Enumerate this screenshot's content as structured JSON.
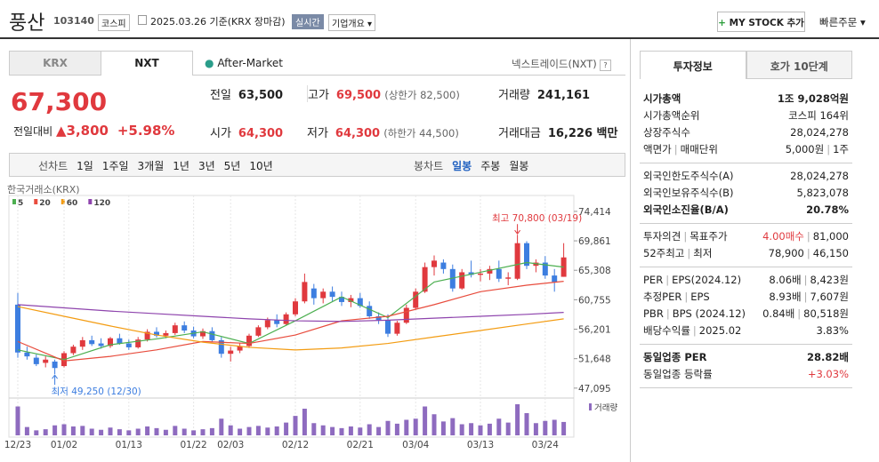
{
  "header": {
    "name": "풍산",
    "code": "103140",
    "market": "코스피",
    "date": "2025.03.26 기준(KRX 장마감)",
    "realtime": "실시간",
    "overview": "기업개요",
    "mystock": "MY STOCK 추가",
    "quick_order": "빠른주문"
  },
  "exchange_tabs": [
    "KRX",
    "NXT"
  ],
  "after_market": "After-Market",
  "nxt_link": "넥스트레이드(NXT)",
  "quote": {
    "price": "67,300",
    "change_label": "전일대비",
    "change": "3,800",
    "change_pct": "+5.98%",
    "items": [
      {
        "label": "전일",
        "value": "63,500"
      },
      {
        "label": "고가",
        "value": "69,500",
        "note": "(상한가 82,500)"
      },
      {
        "label": "거래량",
        "value": "241,161"
      },
      {
        "label": "시가",
        "value": "64,300"
      },
      {
        "label": "저가",
        "value": "64,300",
        "note": "(하한가 44,500)"
      },
      {
        "label": "거래대금",
        "value": "16,226 백만"
      }
    ]
  },
  "period_tabs": {
    "line": "선차트",
    "line_items": [
      "1일",
      "1주일",
      "3개월",
      "1년",
      "3년",
      "5년",
      "10년"
    ],
    "candle": "봉차트",
    "candle_items": [
      "일봉",
      "주봉",
      "월봉"
    ]
  },
  "chart_data": {
    "type": "candlestick",
    "source": "한국거래소(KRX)",
    "up_color": "#e0393e",
    "down_color": "#3d7ee0",
    "categories": [
      "12/23",
      null,
      null,
      null,
      null,
      "01/02",
      null,
      null,
      null,
      null,
      null,
      null,
      "01/13",
      null,
      null,
      null,
      null,
      null,
      null,
      "01/22",
      null,
      null,
      null,
      "02/03",
      null,
      null,
      null,
      null,
      null,
      null,
      "02/12",
      null,
      null,
      null,
      null,
      null,
      null,
      "02/21",
      null,
      null,
      null,
      null,
      null,
      "03/04",
      null,
      null,
      null,
      null,
      null,
      null,
      "03/13",
      null,
      null,
      null,
      null,
      null,
      null,
      "03/24",
      null,
      null
    ],
    "candles": [
      {
        "open": 60000,
        "high": 61800,
        "low": 51800,
        "close": 52600
      },
      {
        "open": 52600,
        "high": 53500,
        "low": 51500,
        "close": 52000
      },
      {
        "open": 51800,
        "high": 52300,
        "low": 50500,
        "close": 50800
      },
      {
        "open": 51000,
        "high": 52000,
        "low": 50300,
        "close": 51500
      },
      {
        "open": 51200,
        "high": 51500,
        "low": 49250,
        "close": 50200
      },
      {
        "open": 50500,
        "high": 52800,
        "low": 50300,
        "close": 52500
      },
      {
        "open": 52500,
        "high": 53800,
        "low": 52200,
        "close": 53500
      },
      {
        "open": 53500,
        "high": 55000,
        "low": 53000,
        "close": 54500
      },
      {
        "open": 54500,
        "high": 55200,
        "low": 53600,
        "close": 53900
      },
      {
        "open": 54000,
        "high": 54800,
        "low": 53200,
        "close": 53600
      },
      {
        "open": 53600,
        "high": 55000,
        "low": 53300,
        "close": 54800
      },
      {
        "open": 54800,
        "high": 55500,
        "low": 53800,
        "close": 54000
      },
      {
        "open": 54000,
        "high": 54600,
        "low": 53000,
        "close": 53400
      },
      {
        "open": 53400,
        "high": 55000,
        "low": 53200,
        "close": 54600
      },
      {
        "open": 54600,
        "high": 56200,
        "low": 54300,
        "close": 55800
      },
      {
        "open": 55800,
        "high": 56500,
        "low": 54900,
        "close": 55200
      },
      {
        "open": 55200,
        "high": 56000,
        "low": 54800,
        "close": 55600
      },
      {
        "open": 55600,
        "high": 57200,
        "low": 55300,
        "close": 56800
      },
      {
        "open": 56800,
        "high": 57400,
        "low": 55600,
        "close": 56000
      },
      {
        "open": 56000,
        "high": 56600,
        "low": 54800,
        "close": 55100
      },
      {
        "open": 55100,
        "high": 56300,
        "low": 54700,
        "close": 55900
      },
      {
        "open": 55900,
        "high": 56500,
        "low": 54200,
        "close": 54500
      },
      {
        "open": 54500,
        "high": 55000,
        "low": 51800,
        "close": 52400
      },
      {
        "open": 52400,
        "high": 53500,
        "low": 51200,
        "close": 52900
      },
      {
        "open": 52900,
        "high": 54000,
        "low": 52500,
        "close": 53600
      },
      {
        "open": 53600,
        "high": 55500,
        "low": 53300,
        "close": 55200
      },
      {
        "open": 55200,
        "high": 56800,
        "low": 55000,
        "close": 56500
      },
      {
        "open": 56500,
        "high": 58000,
        "low": 56200,
        "close": 57600
      },
      {
        "open": 57600,
        "high": 58500,
        "low": 56500,
        "close": 57000
      },
      {
        "open": 57000,
        "high": 58800,
        "low": 56800,
        "close": 58500
      },
      {
        "open": 58500,
        "high": 61000,
        "low": 58200,
        "close": 60500
      },
      {
        "open": 60500,
        "high": 64800,
        "low": 60200,
        "close": 63500
      },
      {
        "open": 62500,
        "high": 63200,
        "low": 60000,
        "close": 61000
      },
      {
        "open": 61000,
        "high": 62500,
        "low": 60200,
        "close": 62000
      },
      {
        "open": 62000,
        "high": 62800,
        "low": 60500,
        "close": 61200
      },
      {
        "open": 61200,
        "high": 62000,
        "low": 59800,
        "close": 60400
      },
      {
        "open": 60400,
        "high": 61500,
        "low": 59600,
        "close": 61000
      },
      {
        "open": 61000,
        "high": 61800,
        "low": 59500,
        "close": 59800
      },
      {
        "open": 59800,
        "high": 60500,
        "low": 57800,
        "close": 58200
      },
      {
        "open": 58200,
        "high": 58800,
        "low": 57000,
        "close": 57600
      },
      {
        "open": 57600,
        "high": 58500,
        "low": 55000,
        "close": 55500
      },
      {
        "open": 55500,
        "high": 57500,
        "low": 55200,
        "close": 57200
      },
      {
        "open": 57200,
        "high": 60000,
        "low": 57000,
        "close": 59500
      },
      {
        "open": 59500,
        "high": 62500,
        "low": 59200,
        "close": 62000
      },
      {
        "open": 62000,
        "high": 66500,
        "low": 61800,
        "close": 65800
      },
      {
        "open": 65800,
        "high": 67600,
        "low": 64500,
        "close": 66800
      },
      {
        "open": 66500,
        "high": 67000,
        "low": 64800,
        "close": 65500
      },
      {
        "open": 65500,
        "high": 66200,
        "low": 62000,
        "close": 62500
      },
      {
        "open": 62500,
        "high": 65500,
        "low": 62300,
        "close": 65000
      },
      {
        "open": 65000,
        "high": 66800,
        "low": 64200,
        "close": 64600
      },
      {
        "open": 64600,
        "high": 65500,
        "low": 63600,
        "close": 64800
      },
      {
        "open": 64800,
        "high": 66000,
        "low": 63800,
        "close": 65500
      },
      {
        "open": 65500,
        "high": 66800,
        "low": 63500,
        "close": 64000
      },
      {
        "open": 64000,
        "high": 65000,
        "low": 63000,
        "close": 64200
      },
      {
        "open": 64000,
        "high": 70800,
        "low": 63800,
        "close": 69500
      },
      {
        "open": 69500,
        "high": 69800,
        "low": 65500,
        "close": 66000
      },
      {
        "open": 66000,
        "high": 67000,
        "low": 65000,
        "close": 66500
      },
      {
        "open": 66500,
        "high": 67500,
        "low": 64000,
        "close": 64500
      },
      {
        "open": 64500,
        "high": 65500,
        "low": 62000,
        "close": 63500
      },
      {
        "open": 64300,
        "high": 69500,
        "low": 64300,
        "close": 67300
      }
    ],
    "volume_label": "거래량",
    "volume_color": "#8e6bbf",
    "volume": [
      520000,
      150000,
      90000,
      110000,
      180000,
      200000,
      160000,
      170000,
      120000,
      100000,
      140000,
      110000,
      90000,
      120000,
      160000,
      130000,
      100000,
      170000,
      120000,
      90000,
      110000,
      130000,
      300000,
      180000,
      120000,
      150000,
      170000,
      140000,
      160000,
      230000,
      350000,
      480000,
      220000,
      180000,
      150000,
      130000,
      160000,
      140000,
      200000,
      150000,
      260000,
      210000,
      280000,
      300000,
      520000,
      380000,
      250000,
      310000,
      200000,
      220000,
      180000,
      210000,
      300000,
      230000,
      560000,
      400000,
      220000,
      260000,
      280000,
      241161
    ],
    "series": [
      {
        "name": "5",
        "color": "#4caf50",
        "x": [
          0,
          5,
          10,
          15,
          20,
          25,
          30,
          35,
          40,
          45,
          50,
          55,
          59
        ],
        "values": [
          53000,
          51500,
          53800,
          54700,
          55800,
          54000,
          57500,
          61200,
          58000,
          63500,
          65000,
          66500,
          65800
        ]
      },
      {
        "name": "20",
        "color": "#e84c3d",
        "x": [
          0,
          5,
          10,
          15,
          20,
          25,
          30,
          35,
          40,
          45,
          50,
          55,
          59
        ],
        "values": [
          54300,
          51300,
          52000,
          53000,
          54300,
          54000,
          55300,
          57500,
          58200,
          60000,
          62000,
          63000,
          63600
        ]
      },
      {
        "name": "60",
        "color": "#f39c12",
        "x": [
          0,
          5,
          10,
          15,
          20,
          25,
          30,
          35,
          40,
          45,
          50,
          55,
          59
        ],
        "values": [
          59700,
          58200,
          56700,
          55300,
          54200,
          53400,
          53000,
          53300,
          54000,
          55000,
          56000,
          57000,
          57800
        ]
      },
      {
        "name": "120",
        "color": "#8e44ad",
        "x": [
          0,
          5,
          10,
          15,
          20,
          25,
          30,
          35,
          40,
          45,
          50,
          55,
          59
        ],
        "values": [
          60000,
          59500,
          59000,
          58600,
          58200,
          57800,
          57500,
          57400,
          57600,
          57900,
          58200,
          58500,
          58800
        ]
      }
    ],
    "ylim": [
      45700,
      75500
    ],
    "yticks": [
      {
        "value": 74414,
        "label": "74,414"
      },
      {
        "value": 69861,
        "label": "69,861"
      },
      {
        "value": 65308,
        "label": "65,308"
      },
      {
        "value": 60755,
        "label": "60,755"
      },
      {
        "value": 56201,
        "label": "56,201"
      },
      {
        "value": 51648,
        "label": "51,648"
      },
      {
        "value": 47095,
        "label": "47,095"
      }
    ],
    "annotations": [
      {
        "text": "최고 70,800 (03/19)",
        "index": 54,
        "value": 70800,
        "position": "above",
        "color": "#e0393e"
      },
      {
        "text": "최저 49,250 (12/30)",
        "index": 4,
        "value": 49250,
        "position": "below",
        "color": "#3d7ee0"
      }
    ]
  },
  "invest": {
    "tabs": [
      "투자정보",
      "호가 10단계"
    ],
    "sections": [
      {
        "rows": [
          {
            "label": [
              "시가총액"
            ],
            "value": [
              "1조 9,028억원"
            ],
            "bold": true
          },
          {
            "label": [
              "시가총액순위"
            ],
            "value": [
              "코스피 164위"
            ]
          },
          {
            "label": [
              "상장주식수"
            ],
            "value": [
              "28,024,278"
            ]
          },
          {
            "label": [
              "액면가",
              "매매단위"
            ],
            "value": [
              "5,000원",
              "1주"
            ]
          }
        ]
      },
      {
        "rows": [
          {
            "label": [
              "외국인한도주식수(A)"
            ],
            "value": [
              "28,024,278"
            ]
          },
          {
            "label": [
              "외국인보유주식수(B)"
            ],
            "value": [
              "5,823,078"
            ]
          },
          {
            "label": [
              "외국인소진율(B/A)"
            ],
            "value": [
              "20.78%"
            ],
            "bold": true
          }
        ]
      },
      {
        "rows": [
          {
            "label": [
              "투자의견",
              "목표주가"
            ],
            "value": [
              {
                "text": "4.00매수",
                "color": "#e0393e"
              },
              "81,000"
            ]
          },
          {
            "label": [
              "52주최고",
              "최저"
            ],
            "value": [
              "78,900",
              "46,150"
            ]
          }
        ]
      },
      {
        "rows": [
          {
            "label": [
              "PER",
              "EPS(2024.12)"
            ],
            "value": [
              "8.06배",
              "8,423원"
            ]
          },
          {
            "label": [
              "추정PER",
              "EPS"
            ],
            "value": [
              "8.93배",
              "7,607원"
            ]
          },
          {
            "label": [
              "PBR",
              "BPS (2024.12)"
            ],
            "value": [
              "0.84배",
              "80,518원"
            ]
          },
          {
            "label": [
              "배당수익률",
              "2025.02"
            ],
            "value": [
              "3.83%"
            ]
          }
        ]
      },
      {
        "rows": [
          {
            "label": [
              "동일업종 PER"
            ],
            "value": [
              "28.82배"
            ],
            "bold": true
          },
          {
            "label": [
              "동일업종 등락률"
            ],
            "value": [
              {
                "text": "+3.03%",
                "color": "#e0393e"
              }
            ]
          }
        ]
      }
    ]
  }
}
